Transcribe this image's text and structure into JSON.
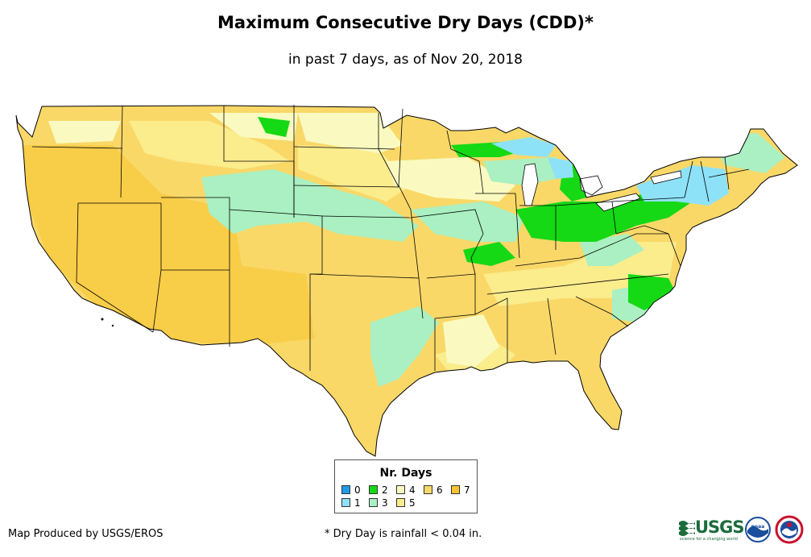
{
  "title": "Maximum Consecutive Dry Days (CDD)*",
  "subtitle": "in past 7 days, as of Nov 20, 2018",
  "legend": {
    "title": "Nr. Days",
    "items": [
      {
        "label": "0",
        "color": "#1f9be8"
      },
      {
        "label": "1",
        "color": "#8ee2f8"
      },
      {
        "label": "2",
        "color": "#14d914"
      },
      {
        "label": "3",
        "color": "#aaf0c2"
      },
      {
        "label": "4",
        "color": "#fafac0"
      },
      {
        "label": "5",
        "color": "#fbec8c"
      },
      {
        "label": "6",
        "color": "#f9d868"
      },
      {
        "label": "7",
        "color": "#f7c52e"
      }
    ]
  },
  "map": {
    "region": "Contiguous United States",
    "land_color": "#f9d868",
    "border_color": "#000000"
  },
  "credit": "Map Produced by USGS/EROS",
  "footnote": "* Dry Day is rainfall < 0.04 in.",
  "logos": {
    "usgs_text": "USGS",
    "usgs_tagline": "science for a changing world",
    "noaa_text": "noaa",
    "usgs_color": "#1c6c3c",
    "noaa_color": "#1a4d9c",
    "nws_color": "#c8102e"
  }
}
